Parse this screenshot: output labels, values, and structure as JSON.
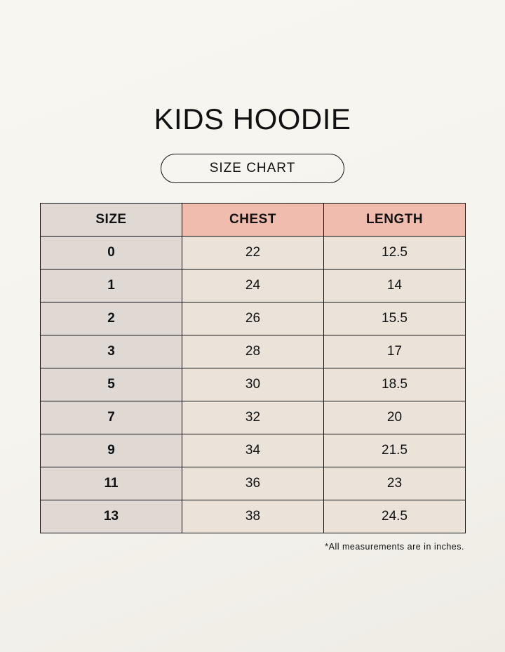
{
  "title": "KIDS HOODIE",
  "subtitle": "SIZE CHART",
  "colors": {
    "header_highlight": "#efbcad",
    "size_column": "#e0d8d3",
    "cell": "#ebe3d9"
  },
  "table": {
    "headers": [
      "SIZE",
      "CHEST",
      "LENGTH"
    ],
    "rows": [
      [
        "0",
        "22",
        "12.5"
      ],
      [
        "1",
        "24",
        "14"
      ],
      [
        "2",
        "26",
        "15.5"
      ],
      [
        "3",
        "28",
        "17"
      ],
      [
        "5",
        "30",
        "18.5"
      ],
      [
        "7",
        "32",
        "20"
      ],
      [
        "9",
        "34",
        "21.5"
      ],
      [
        "11",
        "36",
        "23"
      ],
      [
        "13",
        "38",
        "24.5"
      ]
    ]
  },
  "note": "*All measurements are in inches."
}
